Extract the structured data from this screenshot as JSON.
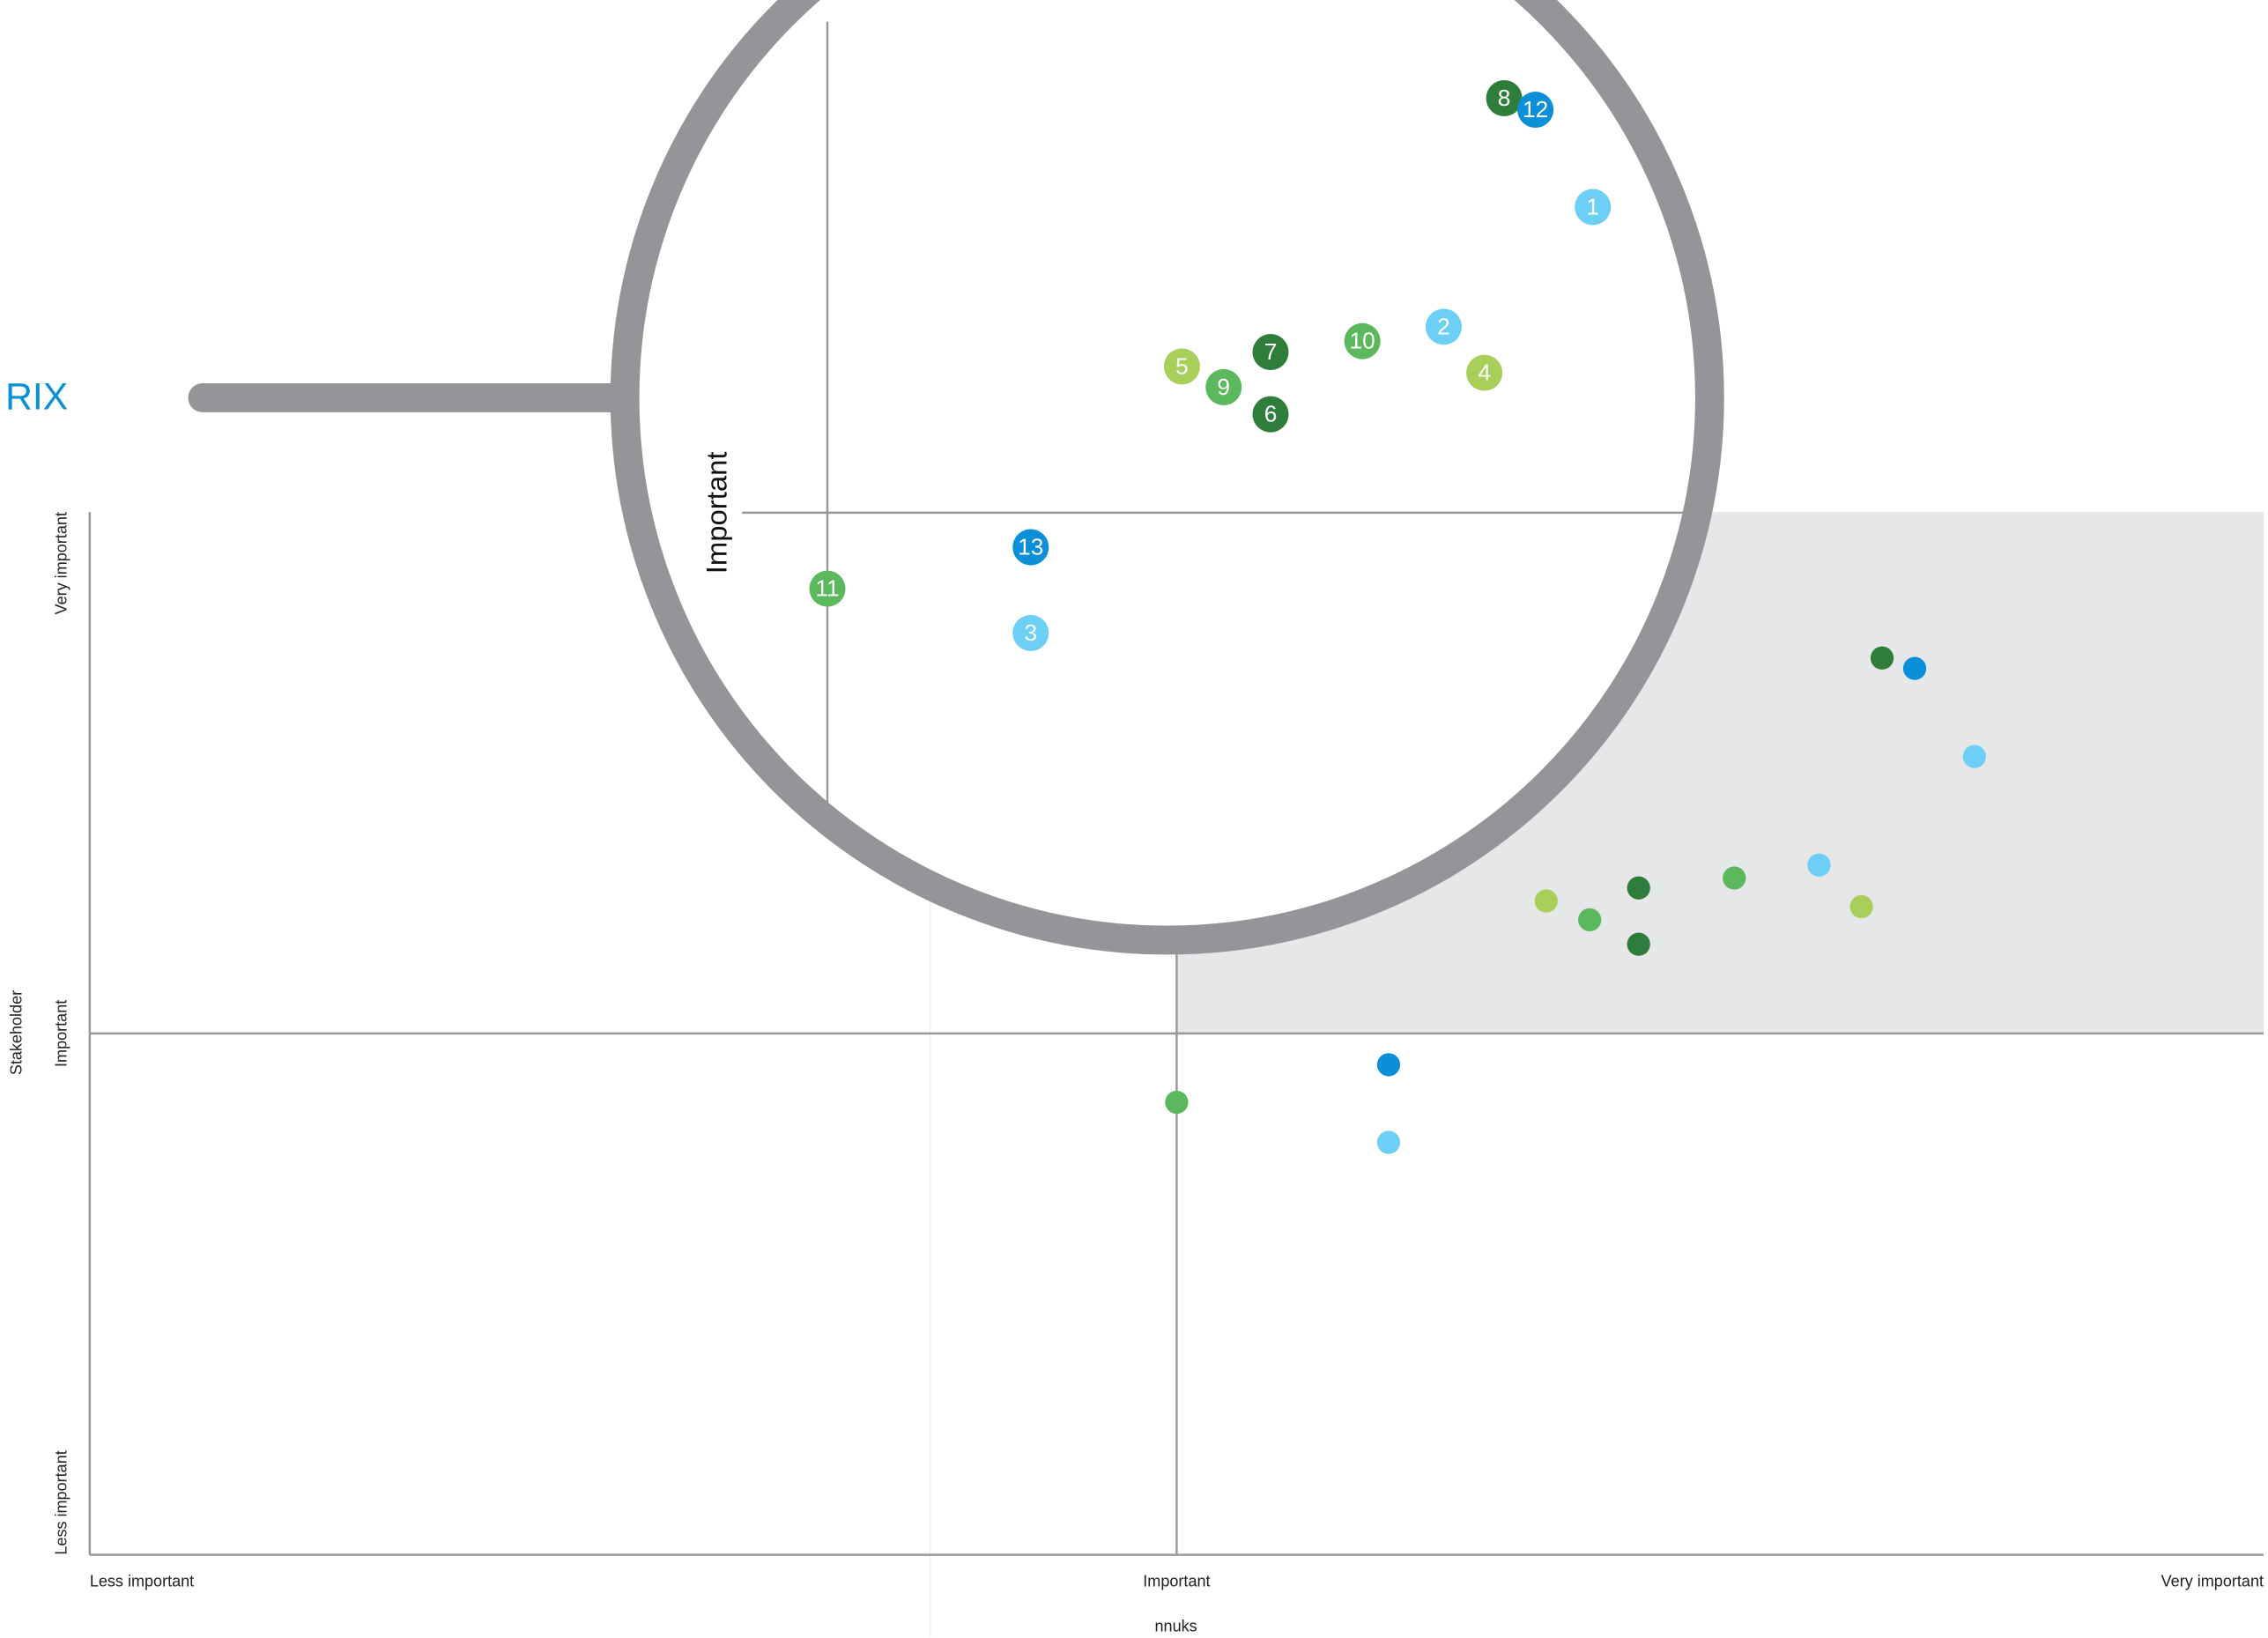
{
  "chart_data": {
    "type": "scatter",
    "title": "RIX",
    "xlabel": "nnuks",
    "ylabel": "Stakeholder",
    "xlim": [
      0,
      2
    ],
    "ylim": [
      0,
      2
    ],
    "xticks": [
      {
        "value": 0,
        "label": "Less important"
      },
      {
        "value": 1,
        "label": "Important"
      },
      {
        "value": 2,
        "label": "Very important"
      }
    ],
    "yticks": [
      {
        "value": 0,
        "label": "Less important"
      },
      {
        "value": 1,
        "label": "Important"
      },
      {
        "value": 2,
        "label": "Very important"
      }
    ],
    "highlight_color": "#e6e7e8",
    "points": [
      {
        "label": "1",
        "x": 1.734,
        "y": 1.531,
        "color": "#6dcff6"
      },
      {
        "label": "2",
        "x": 1.591,
        "y": 1.323,
        "color": "#6dcff6"
      },
      {
        "label": "3",
        "x": 1.195,
        "y": 0.791,
        "color": "#6dcff6"
      },
      {
        "label": "4",
        "x": 1.63,
        "y": 1.243,
        "color": "#a8cf5a"
      },
      {
        "label": "5",
        "x": 1.34,
        "y": 1.254,
        "color": "#a8cf5a"
      },
      {
        "label": "6",
        "x": 1.425,
        "y": 1.171,
        "color": "#2e7d3a"
      },
      {
        "label": "7",
        "x": 1.425,
        "y": 1.279,
        "color": "#2e7d3a"
      },
      {
        "label": "8",
        "x": 1.649,
        "y": 1.72,
        "color": "#2e7d3a"
      },
      {
        "label": "9",
        "x": 1.38,
        "y": 1.218,
        "color": "#5cb85c"
      },
      {
        "label": "10",
        "x": 1.513,
        "y": 1.298,
        "color": "#5cb85c"
      },
      {
        "label": "11",
        "x": 1.0,
        "y": 0.868,
        "color": "#5cb85c"
      },
      {
        "label": "12",
        "x": 1.679,
        "y": 1.7,
        "color": "#0a8fd8"
      },
      {
        "label": "13",
        "x": 1.195,
        "y": 0.94,
        "color": "#0a8fd8"
      }
    ]
  }
}
